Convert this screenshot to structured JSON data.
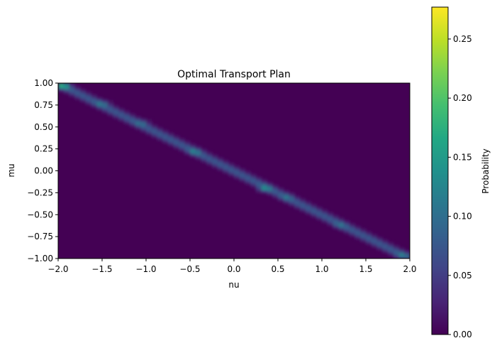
{
  "chart_data": {
    "type": "heatmap",
    "title": "Optimal Transport Plan",
    "xlabel": "nu",
    "ylabel": "mu",
    "xlim": [
      -2.0,
      2.0
    ],
    "ylim": [
      -1.0,
      1.0
    ],
    "xticks": [
      -2.0,
      -1.5,
      -1.0,
      -0.5,
      0.0,
      0.5,
      1.0,
      1.5,
      2.0
    ],
    "xtick_labels": [
      "−2.0",
      "−1.5",
      "−1.0",
      "−0.5",
      "0.0",
      "0.5",
      "1.0",
      "1.5",
      "2.0"
    ],
    "yticks": [
      1.0,
      0.75,
      0.5,
      0.25,
      0.0,
      -0.25,
      -0.5,
      -0.75,
      -1.0
    ],
    "ytick_labels": [
      "1.00",
      "0.75",
      "0.50",
      "0.25",
      "0.00",
      "−0.25",
      "−0.50",
      "−0.75",
      "−1.00"
    ],
    "colormap": "viridis",
    "colorbar": {
      "label": "Probability",
      "range": [
        0.0,
        0.277
      ],
      "ticks": [
        0.0,
        0.05,
        0.1,
        0.15,
        0.2,
        0.25
      ],
      "tick_labels": [
        "0.00",
        "0.05",
        "0.10",
        "0.15",
        "0.20",
        "0.25"
      ]
    },
    "mass_path": {
      "description": "transport mass concentrated along a band from (nu=-2, mu=1) to (nu=2, mu=-1)",
      "start": [
        -2.0,
        1.0
      ],
      "end": [
        2.0,
        -1.0
      ],
      "typical_value": 0.08,
      "hotspots": [
        {
          "nu": -1.95,
          "mu": 0.97,
          "value": 0.2
        },
        {
          "nu": -1.5,
          "mu": 0.77,
          "value": 0.13
        },
        {
          "nu": -1.05,
          "mu": 0.55,
          "value": 0.12
        },
        {
          "nu": -0.45,
          "mu": 0.22,
          "value": 0.14
        },
        {
          "nu": 0.35,
          "mu": -0.2,
          "value": 0.16
        },
        {
          "nu": 0.6,
          "mu": -0.3,
          "value": 0.12
        },
        {
          "nu": 1.2,
          "mu": -0.62,
          "value": 0.12
        },
        {
          "nu": 1.92,
          "mu": -0.96,
          "value": 0.13
        }
      ]
    }
  }
}
